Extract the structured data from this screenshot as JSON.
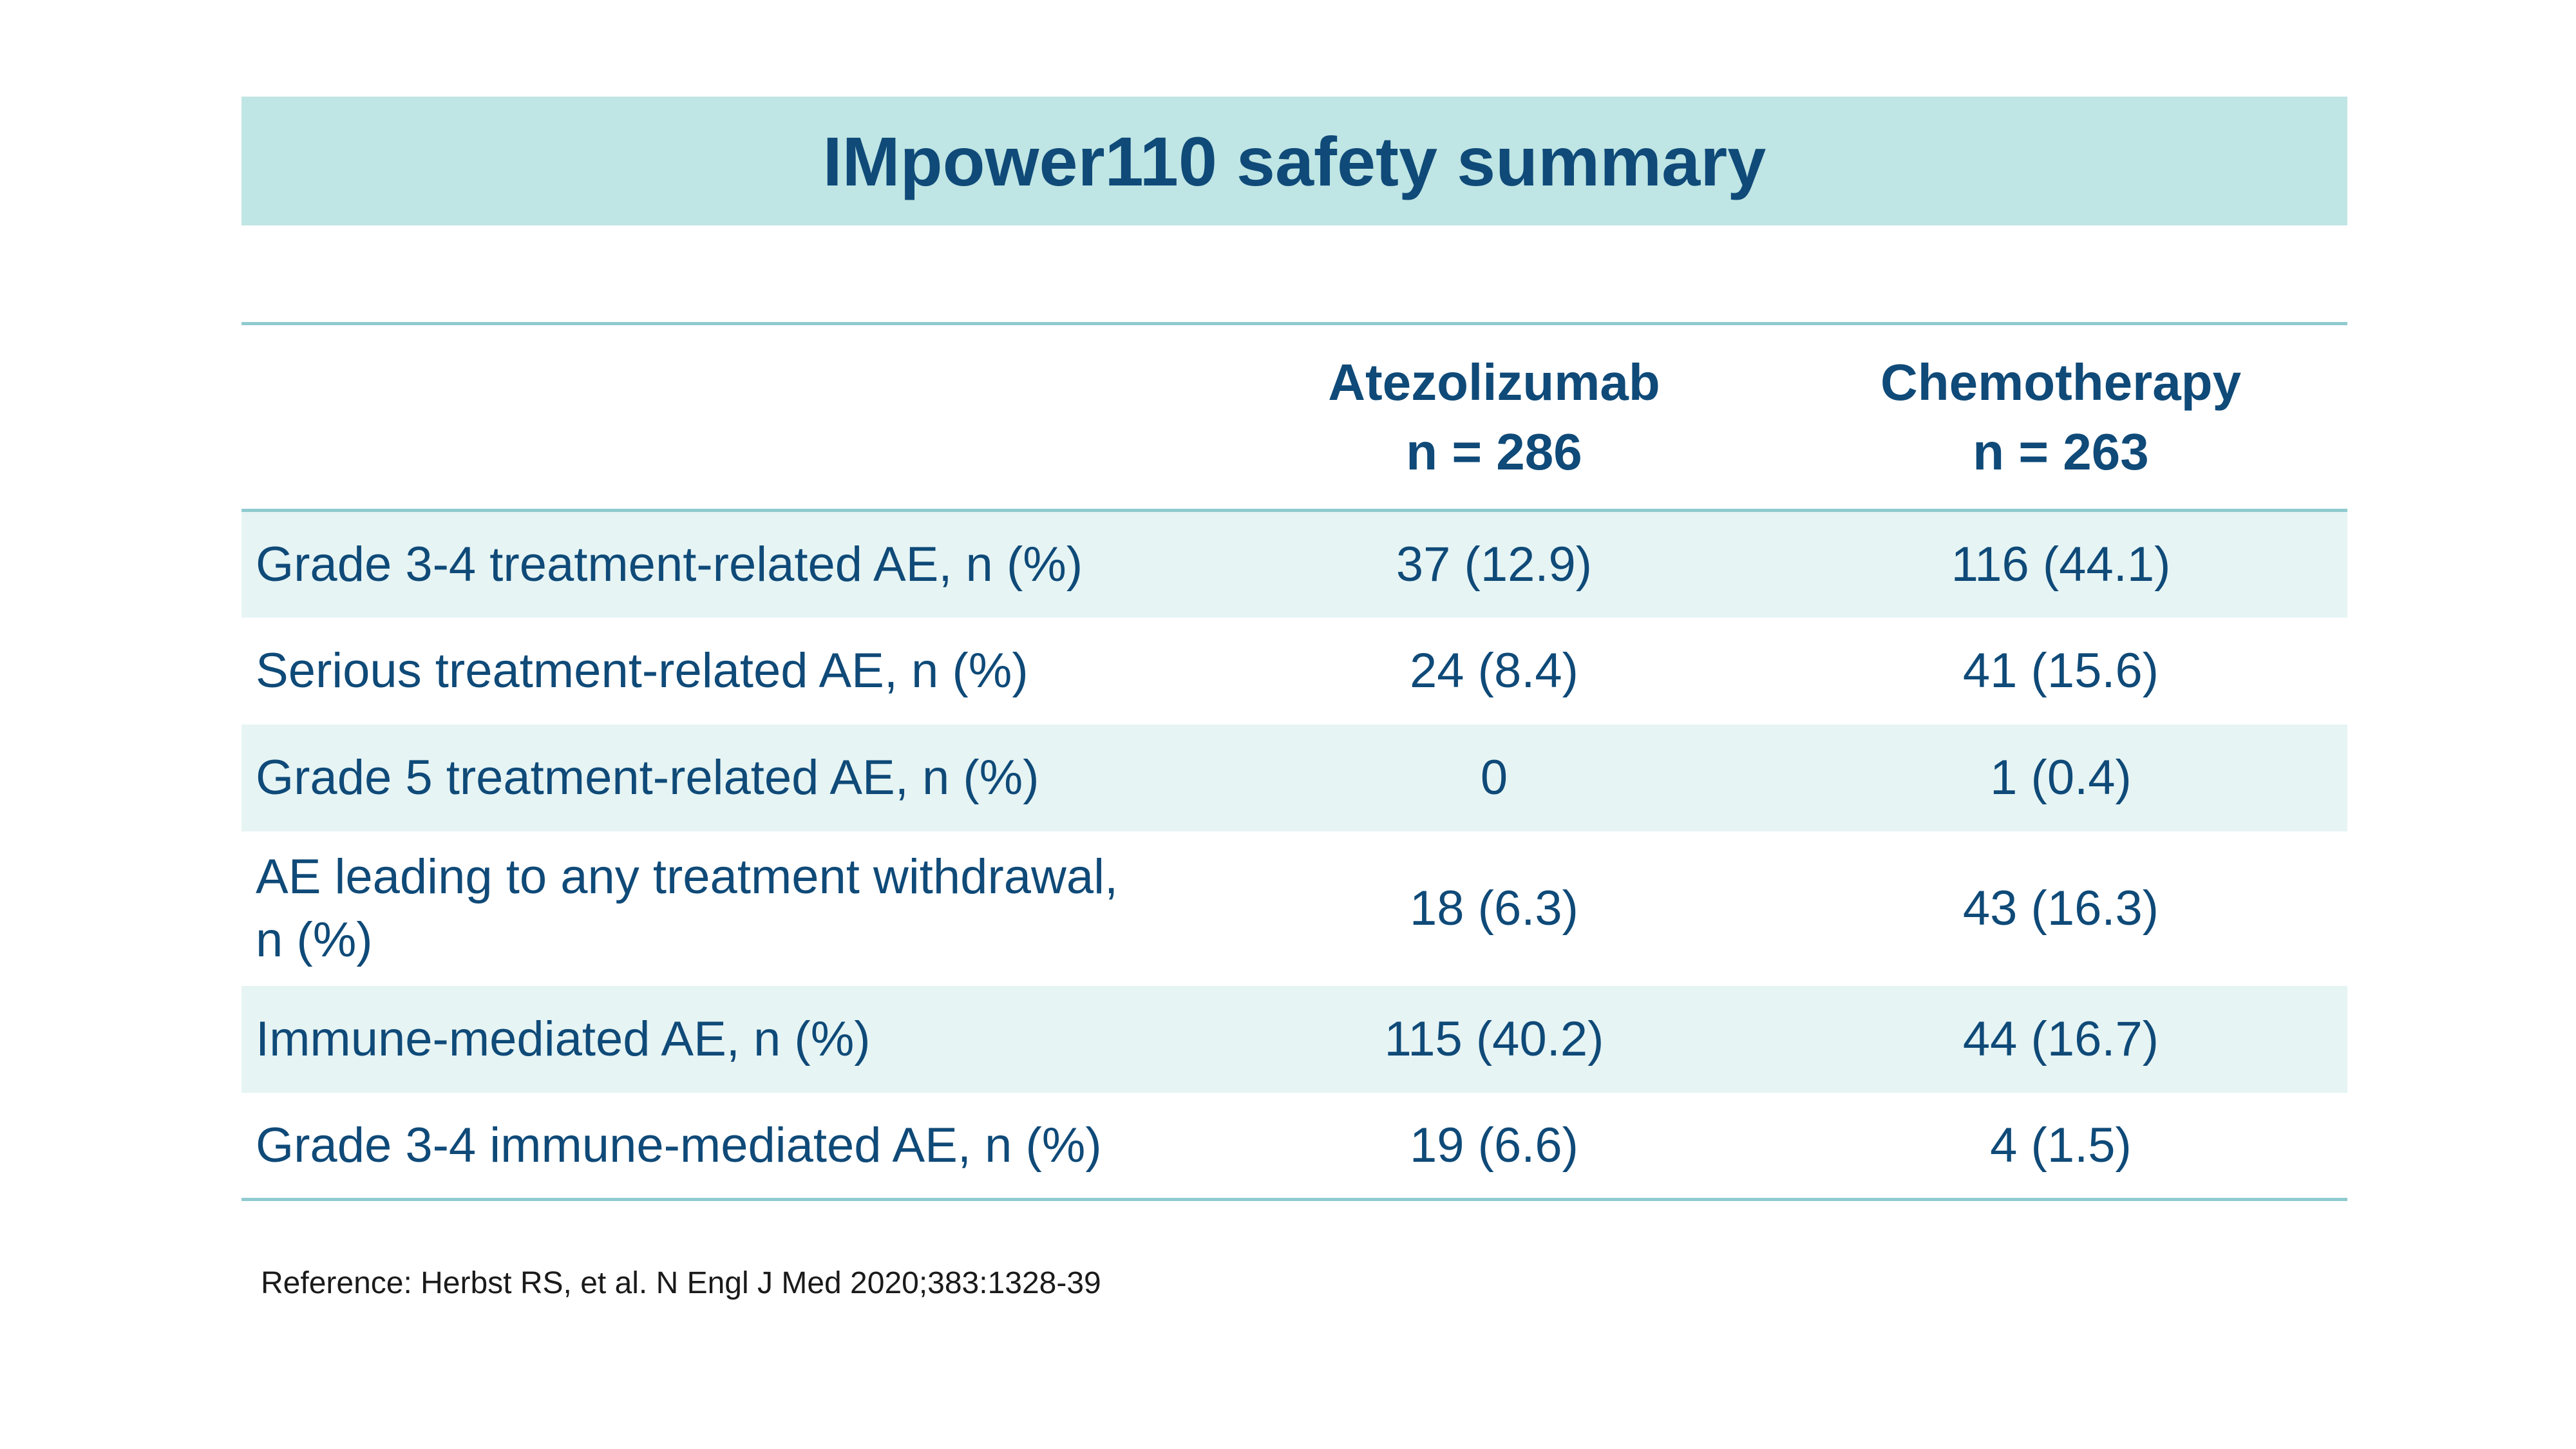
{
  "title": "IMpower110 safety summary",
  "table": {
    "columns": [
      {
        "name": "Atezolizumab",
        "n": "n = 286"
      },
      {
        "name": "Chemotherapy",
        "n": "n = 263"
      }
    ],
    "rows": [
      {
        "label": "Grade 3-4 treatment-related AE, n (%)",
        "atezolizumab": "37 (12.9)",
        "chemotherapy": "116 (44.1)"
      },
      {
        "label": "Serious treatment-related AE, n (%)",
        "atezolizumab": "24 (8.4)",
        "chemotherapy": "41 (15.6)"
      },
      {
        "label": "Grade 5 treatment-related AE, n (%)",
        "atezolizumab": "0",
        "chemotherapy": "1 (0.4)"
      },
      {
        "label_line1": "AE leading to any treatment withdrawal,",
        "label_line2": "n (%)",
        "atezolizumab": "18 (6.3)",
        "chemotherapy": "43 (16.3)"
      },
      {
        "label": "Immune-mediated AE, n (%)",
        "atezolizumab": "115 (40.2)",
        "chemotherapy": "44 (16.7)"
      },
      {
        "label": "Grade 3-4 immune-mediated AE, n (%)",
        "atezolizumab": "19 (6.6)",
        "chemotherapy": "4 (1.5)"
      }
    ]
  },
  "reference": "Reference: Herbst RS, et al. N Engl J Med 2020;383:1328-39",
  "colors": {
    "title_band": "#bfe5e4",
    "text": "#0f4a78",
    "row_shade": "#e6f4f4",
    "rule": "#8fcbd0"
  }
}
